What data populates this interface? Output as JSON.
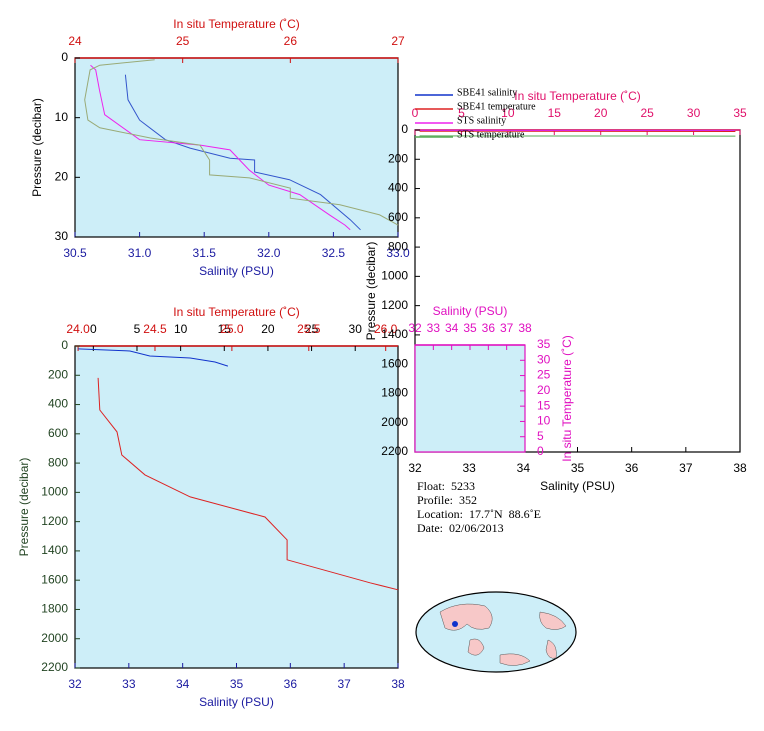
{
  "chart_data": [
    {
      "type": "line",
      "x2label": "In situ Temperature (˚C)",
      "x2lim": [
        24,
        27
      ],
      "x2ticks": [
        24,
        25,
        26,
        27
      ],
      "xlabel": "Salinity (PSU)",
      "xlim": [
        30.5,
        33
      ],
      "xticks": [
        30.5,
        {
          "value": 31,
          "label": "31.0"
        },
        31.5,
        {
          "value": 32,
          "label": "32.0"
        },
        32.5,
        {
          "value": 33,
          "label": "33.0"
        }
      ],
      "ylabel": "Pressure (decibar)",
      "ylim": [
        0,
        30
      ],
      "y_inverted": true,
      "yticks": [
        0,
        10,
        20,
        30
      ],
      "series": [
        {
          "color": "#3355cc",
          "x": [
            30.89,
            30.91,
            31.0,
            31.2,
            31.39,
            31.7,
            31.89,
            31.89,
            32.16,
            32.4,
            32.63,
            32.71
          ],
          "y": [
            2.8,
            7,
            10.4,
            13.7,
            15.1,
            16.8,
            17.1,
            19.1,
            20.4,
            22.9,
            27.1,
            28.8
          ]
        },
        {
          "color": "#ee22ee",
          "x": [
            30.62,
            30.66,
            30.69,
            30.73,
            31.0,
            31.47,
            31.7,
            31.85,
            32.0,
            32.24,
            32.47,
            32.59,
            32.63
          ],
          "y": [
            1.2,
            2.0,
            5.4,
            9.5,
            13.7,
            14.6,
            15.4,
            18.8,
            21.3,
            22.9,
            26.3,
            28.0,
            28.8
          ]
        },
        {
          "color": "#99aa77",
          "axis": "x2",
          "x": [
            24.74,
            24.23,
            24.14,
            24.09,
            24.12,
            24.23,
            24.7,
            25.16,
            25.25,
            25.25,
            25.62,
            26.0,
            26.0,
            26.46,
            26.83,
            27.0
          ],
          "y": [
            0.3,
            1.2,
            2.0,
            7.0,
            10.4,
            11.7,
            13.4,
            14.6,
            17.1,
            19.6,
            20.1,
            21.8,
            23.5,
            24.6,
            26.3,
            28.0
          ]
        }
      ]
    },
    {
      "type": "line",
      "x2label": "In situ Temperature (˚C)",
      "x2lim": [
        23.98,
        26.08
      ],
      "x2ticks": [
        {
          "value": 24,
          "label": "24.0"
        },
        24.5,
        {
          "value": 25,
          "label": "25.0"
        },
        25.5,
        {
          "value": 26,
          "label": "26.0"
        }
      ],
      "x3lim": [
        -2.1,
        34.9
      ],
      "x3ticks": [
        0,
        5,
        10,
        15,
        20,
        25,
        30
      ],
      "xlabel": "Salinity (PSU)",
      "xlim": [
        32,
        38
      ],
      "xticks": [
        32,
        33,
        34,
        35,
        36,
        37,
        38
      ],
      "ylabel": "Pressure (decibar)",
      "ylim": [
        0,
        2200
      ],
      "y_inverted": true,
      "yticks": [
        0,
        200,
        400,
        600,
        800,
        1000,
        1200,
        1400,
        1600,
        1800,
        2000,
        2200
      ],
      "series": [
        {
          "color": "#1133cc",
          "x": [
            32.06,
            33.02,
            33.39,
            34.14,
            34.6,
            34.84
          ],
          "y": [
            20,
            34,
            68,
            82,
            109,
            137
          ]
        },
        {
          "color": "#dd2222",
          "x": [
            32.43,
            32.46,
            32.78,
            32.87,
            33.3,
            34.14,
            35.53,
            35.94,
            35.94,
            37.48,
            38.0
          ],
          "y": [
            218,
            437,
            587,
            745,
            881,
            1031,
            1168,
            1325,
            1461,
            1618,
            1666
          ]
        }
      ]
    },
    {
      "type": "line",
      "x2label": "In situ Temperature (˚C)",
      "x2lim": [
        0,
        35
      ],
      "x2ticks": [
        0,
        5,
        10,
        15,
        20,
        25,
        30,
        35
      ],
      "xlabel": "Salinity (PSU)",
      "xlim": [
        32,
        38
      ],
      "xticks": [
        32,
        33,
        34,
        35,
        36,
        37,
        38
      ],
      "ylabel": "Pressure (decibar)",
      "ylim": [
        0,
        2200
      ],
      "y_inverted": true,
      "yticks": [
        0,
        200,
        400,
        600,
        800,
        1000,
        1200,
        1400,
        1600,
        1800,
        2000,
        2200
      ],
      "series": [
        {
          "name": "SBE41 salinity",
          "color": "#1133cc",
          "x": [
            32.1,
            37.9
          ],
          "y": [
            4,
            6
          ]
        },
        {
          "name": "SBE41 temperature",
          "color": "#dd2222",
          "axis": "x2",
          "x": [
            0.5,
            34.5
          ],
          "y": [
            8,
            10
          ]
        },
        {
          "name": "STS salinity",
          "color": "#ee22ee",
          "x": [
            32.1,
            37.9
          ],
          "y": [
            2,
            3
          ]
        },
        {
          "name": "STS temperature",
          "color": "#55aa55",
          "axis": "x2",
          "x": [
            0.5,
            34.5
          ],
          "y": [
            40,
            42
          ]
        }
      ]
    },
    {
      "type": "line",
      "x2label": "Salinity (PSU)",
      "x2lim": [
        32,
        38
      ],
      "x2ticks": [
        32,
        33,
        34,
        35,
        36,
        37,
        38
      ],
      "y2label": "In situ Temperature (˚C)",
      "y2lim": [
        0,
        35
      ],
      "y2ticks": [
        0,
        5,
        10,
        15,
        20,
        25,
        30,
        35
      ],
      "series": []
    }
  ],
  "info": {
    "float": "Float:  5233",
    "profile": "Profile:  352",
    "location": "Location:  17.7˚N  88.6˚E",
    "date": "Date:  02/06/2013"
  }
}
